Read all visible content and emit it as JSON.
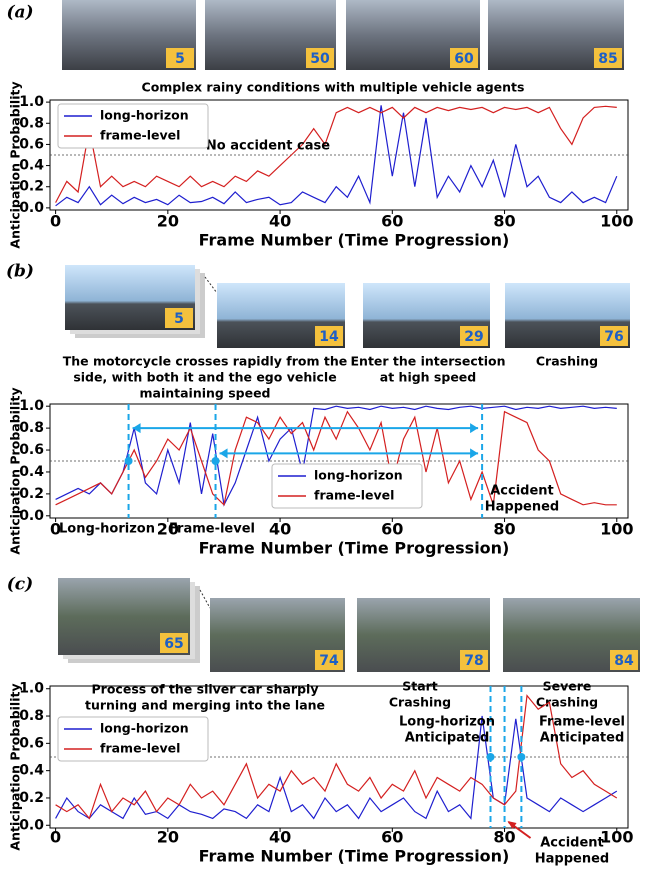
{
  "chart_data": [
    {
      "type": "line",
      "panel_label": "(a)",
      "frames": [
        5,
        50,
        60,
        85
      ],
      "captions": [
        [
          "Complex rainy conditions with multiple vehicle agents"
        ]
      ],
      "annotations": [
        [
          "No accident case"
        ]
      ],
      "xlabel": "Frame Number (Time Progression)",
      "ylabel": "Anticipation Probability",
      "xlim": [
        -1,
        102
      ],
      "ylim": [
        -0.02,
        1.02
      ],
      "xticks": [
        0,
        20,
        40,
        60,
        80,
        100
      ],
      "yticks": [
        {
          "value": 0,
          "label": "0.0"
        },
        {
          "value": 0.2,
          "label": "0.2"
        },
        {
          "value": 0.4,
          "label": "0.4"
        },
        {
          "value": 0.6,
          "label": "0.6"
        },
        {
          "value": 0.8,
          "label": "0.8"
        },
        {
          "value": 1,
          "label": "1.0"
        }
      ],
      "threshold": 0.5,
      "legend": "upper left",
      "x": [
        0,
        2,
        4,
        6,
        8,
        10,
        12,
        14,
        16,
        18,
        20,
        22,
        24,
        26,
        28,
        30,
        32,
        34,
        36,
        38,
        40,
        42,
        44,
        46,
        48,
        50,
        52,
        54,
        56,
        58,
        60,
        62,
        64,
        66,
        68,
        70,
        72,
        74,
        76,
        78,
        80,
        82,
        84,
        86,
        88,
        90,
        92,
        94,
        96,
        98,
        100
      ],
      "series": [
        {
          "name": "long-horizon",
          "color": "#1f1fcf",
          "values": [
            0.02,
            0.1,
            0.05,
            0.2,
            0.03,
            0.12,
            0.04,
            0.1,
            0.05,
            0.08,
            0.03,
            0.12,
            0.05,
            0.06,
            0.1,
            0.04,
            0.15,
            0.05,
            0.08,
            0.1,
            0.03,
            0.05,
            0.15,
            0.1,
            0.05,
            0.2,
            0.1,
            0.3,
            0.05,
            0.97,
            0.3,
            0.9,
            0.2,
            0.85,
            0.1,
            0.3,
            0.15,
            0.4,
            0.2,
            0.45,
            0.1,
            0.6,
            0.2,
            0.3,
            0.1,
            0.05,
            0.15,
            0.05,
            0.1,
            0.05,
            0.3
          ]
        },
        {
          "name": "frame-level",
          "color": "#d42020",
          "values": [
            0.05,
            0.25,
            0.15,
            0.75,
            0.2,
            0.3,
            0.2,
            0.25,
            0.2,
            0.3,
            0.25,
            0.2,
            0.3,
            0.2,
            0.25,
            0.2,
            0.3,
            0.25,
            0.35,
            0.3,
            0.4,
            0.5,
            0.6,
            0.75,
            0.6,
            0.9,
            0.95,
            0.9,
            0.95,
            0.9,
            0.95,
            0.85,
            0.95,
            0.9,
            0.95,
            0.92,
            0.95,
            0.93,
            0.95,
            0.9,
            0.95,
            0.93,
            0.95,
            0.9,
            0.95,
            0.75,
            0.6,
            0.85,
            0.95,
            0.96,
            0.95
          ]
        }
      ]
    },
    {
      "type": "line",
      "panel_label": "(b)",
      "frames": [
        5,
        14,
        29,
        76
      ],
      "captions": [
        [
          "The motorcycle crosses rapidly from the",
          "side, with both it and the ego vehicle",
          "maintaining speed"
        ],
        [
          "Enter the intersection",
          "at high speed"
        ],
        [
          "Crashing"
        ]
      ],
      "annotations": [
        [
          "Long-horizon"
        ],
        [
          "Frame-level"
        ],
        [
          "Accident",
          "Happened"
        ]
      ],
      "events": {
        "long_horizon": 13,
        "frame_level": 28.5,
        "accident": 76
      },
      "xlabel": "Frame Number (Time Progression)",
      "ylabel": "Anticipation Probability",
      "xlim": [
        -1,
        102
      ],
      "ylim": [
        -0.02,
        1.02
      ],
      "xticks": [
        0,
        20,
        40,
        60,
        80,
        100
      ],
      "yticks": [
        {
          "value": 0,
          "label": "0.0"
        },
        {
          "value": 0.2,
          "label": "0.2"
        },
        {
          "value": 0.4,
          "label": "0.4"
        },
        {
          "value": 0.6,
          "label": "0.6"
        },
        {
          "value": 0.8,
          "label": "0.8"
        },
        {
          "value": 1,
          "label": "1.0"
        }
      ],
      "threshold": 0.5,
      "legend": "lower center",
      "x": [
        0,
        2,
        4,
        6,
        8,
        10,
        12,
        14,
        16,
        18,
        20,
        22,
        24,
        26,
        28,
        30,
        32,
        34,
        36,
        38,
        40,
        42,
        44,
        46,
        48,
        50,
        52,
        54,
        56,
        58,
        60,
        62,
        64,
        66,
        68,
        70,
        72,
        74,
        76,
        78,
        80,
        82,
        84,
        86,
        88,
        90,
        92,
        94,
        96,
        98,
        100
      ],
      "series": [
        {
          "name": "long-horizon",
          "color": "#1f1fcf",
          "values": [
            0.15,
            0.2,
            0.25,
            0.2,
            0.3,
            0.2,
            0.4,
            0.8,
            0.3,
            0.2,
            0.6,
            0.3,
            0.85,
            0.2,
            0.75,
            0.1,
            0.3,
            0.6,
            0.9,
            0.5,
            0.7,
            0.8,
            0.4,
            0.98,
            0.97,
            1.0,
            0.98,
            0.99,
            0.97,
            1.0,
            0.98,
            0.99,
            0.97,
            1.0,
            0.98,
            0.97,
            0.99,
            1.0,
            0.98,
            0.99,
            1.0,
            0.97,
            0.99,
            0.98,
            1.0,
            0.98,
            0.99,
            1.0,
            0.98,
            0.99,
            0.98
          ]
        },
        {
          "name": "frame-level",
          "color": "#d42020",
          "values": [
            0.1,
            0.15,
            0.2,
            0.25,
            0.3,
            0.2,
            0.4,
            0.6,
            0.35,
            0.5,
            0.7,
            0.6,
            0.8,
            0.5,
            0.2,
            0.1,
            0.6,
            0.9,
            0.85,
            0.7,
            0.9,
            0.75,
            0.85,
            0.6,
            0.9,
            0.7,
            0.95,
            0.8,
            0.6,
            0.85,
            0.3,
            0.7,
            0.9,
            0.4,
            0.8,
            0.3,
            0.5,
            0.15,
            0.4,
            0.1,
            0.95,
            0.9,
            0.85,
            0.6,
            0.5,
            0.2,
            0.15,
            0.1,
            0.12,
            0.1,
            0.1
          ]
        }
      ]
    },
    {
      "type": "line",
      "panel_label": "(c)",
      "frames": [
        65,
        74,
        78,
        84
      ],
      "captions": [
        [
          "Process of the silver car sharply",
          "turning and merging into the lane"
        ],
        [
          "Start",
          "Crashing"
        ],
        [
          "Severe",
          "Crashing"
        ]
      ],
      "annotations": [
        [
          "Long-horizon",
          "Anticipated"
        ],
        [
          "Frame-level",
          "Anticipated"
        ],
        [
          "Accident",
          "Happened"
        ]
      ],
      "events": {
        "long_horizon": 77.5,
        "frame_level": 83,
        "accident": 80
      },
      "xlabel": "Frame Number (Time Progression)",
      "ylabel": "Anticipation Probability",
      "xlim": [
        -1,
        102
      ],
      "ylim": [
        -0.02,
        1.02
      ],
      "xticks": [
        0,
        20,
        40,
        60,
        80,
        100
      ],
      "yticks": [
        {
          "value": 0,
          "label": "0.0"
        },
        {
          "value": 0.2,
          "label": "0.2"
        },
        {
          "value": 0.4,
          "label": "0.4"
        },
        {
          "value": 0.6,
          "label": "0.6"
        },
        {
          "value": 0.8,
          "label": "0.8"
        },
        {
          "value": 1,
          "label": "1.0"
        }
      ],
      "threshold": 0.5,
      "legend": "upper left",
      "x": [
        0,
        2,
        4,
        6,
        8,
        10,
        12,
        14,
        16,
        18,
        20,
        22,
        24,
        26,
        28,
        30,
        32,
        34,
        36,
        38,
        40,
        42,
        44,
        46,
        48,
        50,
        52,
        54,
        56,
        58,
        60,
        62,
        64,
        66,
        68,
        70,
        72,
        74,
        76,
        78,
        80,
        82,
        84,
        86,
        88,
        90,
        92,
        94,
        96,
        98,
        100
      ],
      "series": [
        {
          "name": "long-horizon",
          "color": "#1f1fcf",
          "values": [
            0.05,
            0.2,
            0.1,
            0.05,
            0.15,
            0.1,
            0.05,
            0.2,
            0.08,
            0.1,
            0.05,
            0.15,
            0.1,
            0.08,
            0.05,
            0.12,
            0.1,
            0.05,
            0.15,
            0.1,
            0.35,
            0.1,
            0.15,
            0.05,
            0.2,
            0.1,
            0.15,
            0.05,
            0.2,
            0.1,
            0.15,
            0.2,
            0.1,
            0.05,
            0.25,
            0.1,
            0.15,
            0.05,
            0.8,
            0.2,
            0.15,
            0.78,
            0.2,
            0.15,
            0.1,
            0.2,
            0.15,
            0.1,
            0.15,
            0.2,
            0.25
          ]
        },
        {
          "name": "frame-level",
          "color": "#d42020",
          "values": [
            0.15,
            0.1,
            0.15,
            0.05,
            0.3,
            0.1,
            0.2,
            0.15,
            0.25,
            0.1,
            0.2,
            0.15,
            0.3,
            0.2,
            0.25,
            0.15,
            0.3,
            0.45,
            0.2,
            0.3,
            0.25,
            0.4,
            0.3,
            0.35,
            0.25,
            0.45,
            0.3,
            0.25,
            0.35,
            0.2,
            0.3,
            0.25,
            0.4,
            0.2,
            0.35,
            0.3,
            0.25,
            0.35,
            0.3,
            0.2,
            0.15,
            0.25,
            0.95,
            0.85,
            0.9,
            0.45,
            0.35,
            0.4,
            0.3,
            0.25,
            0.2
          ]
        }
      ]
    }
  ]
}
